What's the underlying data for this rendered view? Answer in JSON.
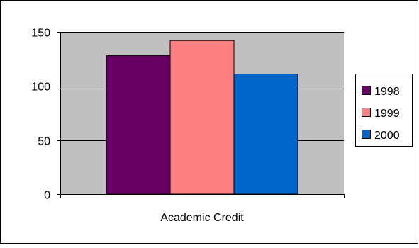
{
  "chart_data": {
    "type": "bar",
    "categories": [
      "Academic Credit"
    ],
    "series": [
      {
        "name": "1998",
        "values": [
          128
        ]
      },
      {
        "name": "1999",
        "values": [
          142
        ]
      },
      {
        "name": "2000",
        "values": [
          111
        ]
      }
    ],
    "title": "",
    "xlabel": "",
    "ylabel": "",
    "ylim": [
      0,
      150
    ],
    "yticks": [
      0,
      50,
      100,
      150
    ],
    "grid": true,
    "legend": "right",
    "colors": {
      "1998": "#660066",
      "1999": "#ff8080",
      "2000": "#0066cc",
      "plot_background": "#c0c0c0",
      "frame": "#000000"
    }
  }
}
